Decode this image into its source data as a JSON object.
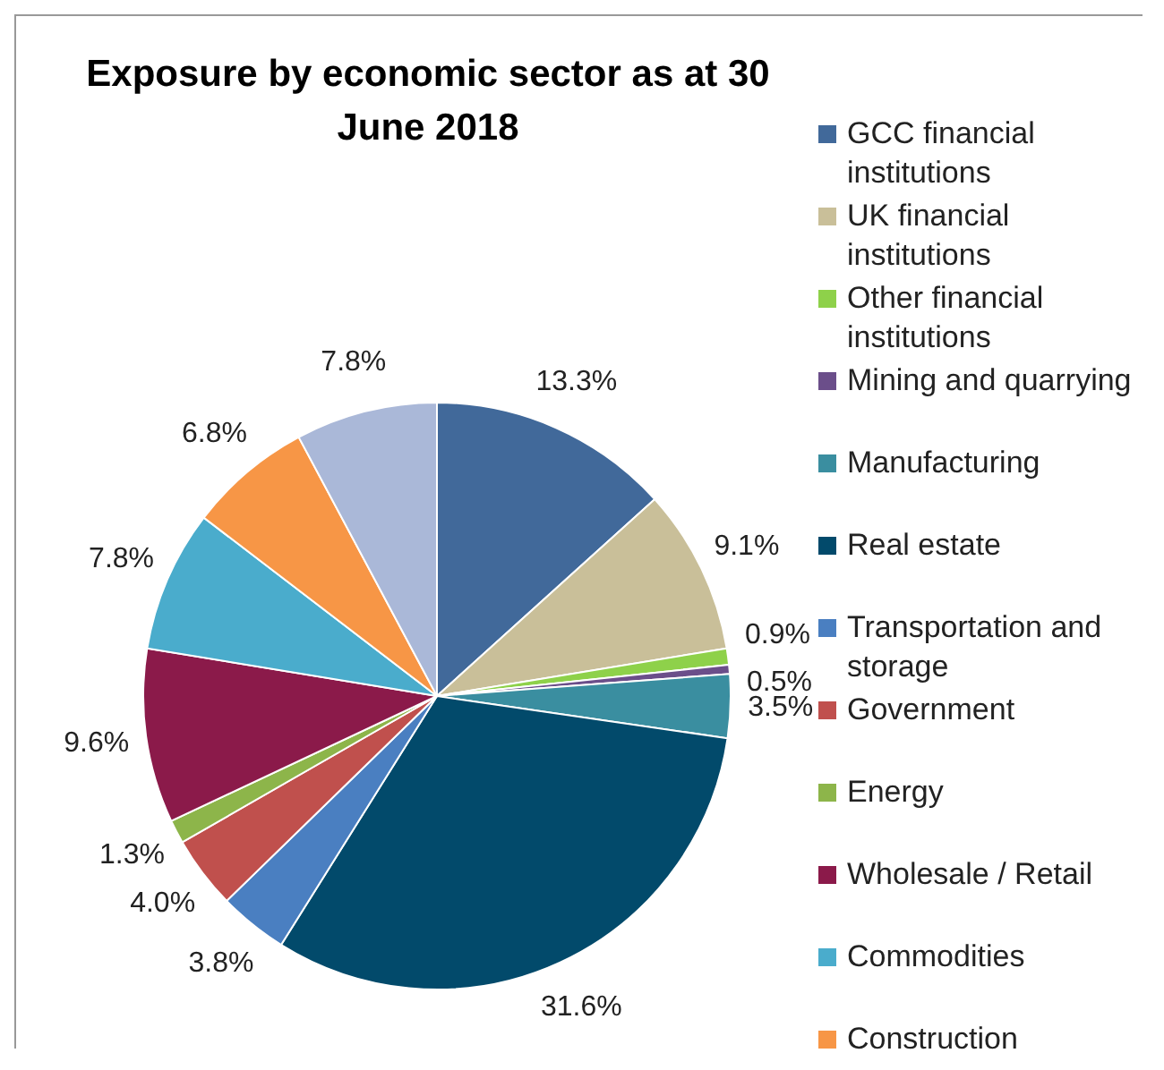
{
  "chart_data": {
    "type": "pie",
    "title": "Exposure by economic sector as at 30 June 2018",
    "categories": [
      "GCC financial institutions",
      "UK financial institutions",
      "Other financial institutions",
      "Mining and quarrying",
      "Manufacturing",
      "Real estate",
      "Transportation and storage",
      "Government",
      "Energy",
      "Wholesale / Retail",
      "Commodities",
      "Construction",
      null
    ],
    "values": [
      13.3,
      9.1,
      0.9,
      0.5,
      3.5,
      31.6,
      3.8,
      4.0,
      1.3,
      9.6,
      7.8,
      6.8,
      7.8
    ],
    "value_labels": [
      "13.3%",
      "9.1%",
      "0.9%",
      "0.5%",
      "3.5%",
      "31.6%",
      "3.8%",
      "4.0%",
      "1.3%",
      "9.6%",
      "7.8%",
      "6.8%",
      "7.8%"
    ],
    "colors": [
      "#41699a",
      "#c9bf99",
      "#8ed14a",
      "#6b4e8a",
      "#3a8ea0",
      "#024a6b",
      "#4a7fc1",
      "#c0504d",
      "#8db54a",
      "#8b1a4a",
      "#4aaccc",
      "#f79646",
      "#aab8d8"
    ],
    "legend": "right"
  }
}
